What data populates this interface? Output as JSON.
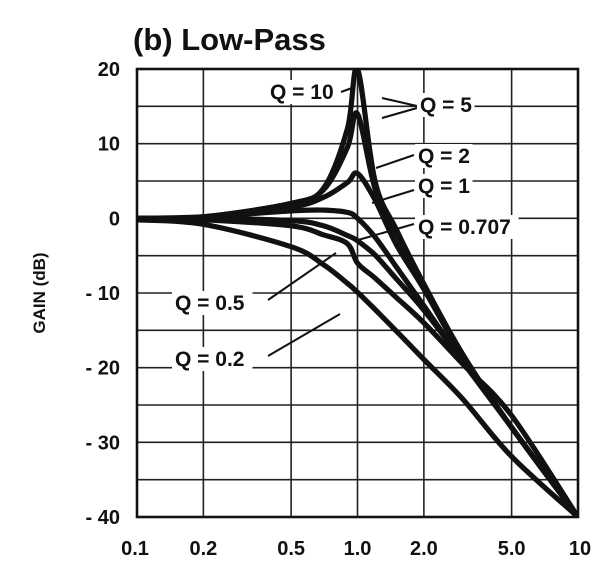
{
  "chart_data": {
    "type": "line",
    "title": "(b) Low-Pass",
    "ylabel": "GAIN (dB)",
    "xlabel": "",
    "x_scale": "log",
    "xlim": [
      0.1,
      10
    ],
    "ylim": [
      -40,
      20
    ],
    "x_ticks": [
      "0.1",
      "0.2",
      "0.5",
      "1.0",
      "2.0",
      "5.0",
      "10"
    ],
    "y_ticks": [
      "20",
      "10",
      "0",
      "- 10",
      "- 20",
      "- 30",
      "- 40"
    ],
    "x": [
      0.1,
      0.2,
      0.5,
      0.7,
      0.9,
      1.0,
      1.2,
      1.5,
      2.0,
      3.0,
      5.0,
      10
    ],
    "series": [
      {
        "name": "Q = 0.2",
        "values": [
          -0.2,
          -0.8,
          -3.8,
          -6.2,
          -8.7,
          -9.9,
          -12.2,
          -15.1,
          -18.9,
          -24.2,
          -31.9,
          -40.0
        ]
      },
      {
        "name": "Q = 0.5",
        "values": [
          0.0,
          -0.2,
          -1.0,
          -2.2,
          -3.4,
          -6.0,
          -8.0,
          -10.6,
          -14.0,
          -19.5,
          -26.4,
          -40.0
        ]
      },
      {
        "name": "Q = 0.707",
        "values": [
          0.0,
          0.0,
          -0.3,
          -1.0,
          -2.3,
          -3.0,
          -4.9,
          -8.1,
          -12.3,
          -19.1,
          -28.0,
          -40.0
        ]
      },
      {
        "name": "Q = 1",
        "values": [
          0.0,
          0.2,
          1.0,
          1.1,
          0.8,
          0.0,
          -2.5,
          -6.5,
          -11.7,
          -19.2,
          -28.0,
          -40.0
        ]
      },
      {
        "name": "Q = 2",
        "values": [
          0.0,
          0.2,
          1.5,
          2.8,
          4.8,
          6.0,
          2.5,
          -3.5,
          -9.5,
          -18.5,
          -28.0,
          -40.0
        ]
      },
      {
        "name": "Q = 5",
        "values": [
          0.0,
          0.2,
          2.0,
          3.8,
          9.5,
          14.0,
          4.0,
          -2.0,
          -9.0,
          -18.3,
          -28.0,
          -40.0
        ]
      },
      {
        "name": "Q = 10",
        "values": [
          0.0,
          0.2,
          2.0,
          4.0,
          12.0,
          20.0,
          5.0,
          -1.5,
          -8.8,
          -18.2,
          -28.0,
          -40.0
        ]
      }
    ],
    "grid": true,
    "legend": "none"
  }
}
